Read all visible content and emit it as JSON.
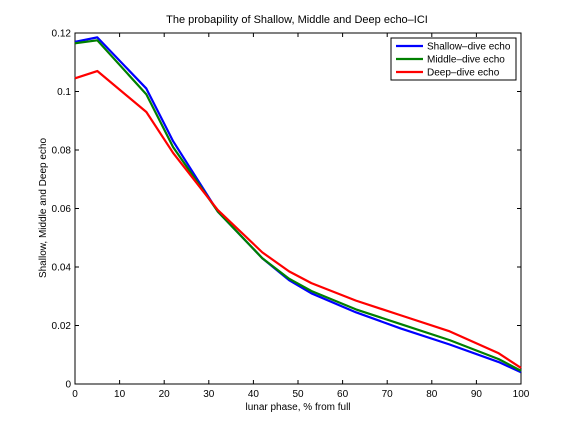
{
  "chart_data": {
    "type": "line",
    "title": "The probapility of Shallow, Middle and Deep echo–ICI",
    "xlabel": "lunar phase, % from full",
    "ylabel": "Shallow, Middle and Deep echo",
    "xlim": [
      0,
      100
    ],
    "ylim": [
      0,
      0.12
    ],
    "xticks": [
      0,
      10,
      20,
      30,
      40,
      50,
      60,
      70,
      80,
      90,
      100
    ],
    "yticks": [
      0,
      0.02,
      0.04,
      0.06,
      0.08,
      0.1,
      0.12
    ],
    "ytick_labels": [
      "0",
      "0.02",
      "0.04",
      "0.06",
      "0.08",
      "0.1",
      "0.12"
    ],
    "grid": false,
    "legend_position": "top-right",
    "series": [
      {
        "name": "Shallow–dive echo",
        "color": "#0000ff",
        "x": [
          0,
          5,
          16,
          22,
          32,
          42,
          48,
          53,
          63,
          73,
          84,
          95,
          100
        ],
        "y": [
          0.117,
          0.1185,
          0.101,
          0.083,
          0.059,
          0.043,
          0.0355,
          0.031,
          0.0245,
          0.019,
          0.0135,
          0.0075,
          0.004
        ]
      },
      {
        "name": "Middle–dive echo",
        "color": "#008000",
        "x": [
          0,
          5,
          16,
          22,
          32,
          42,
          48,
          53,
          63,
          73,
          84,
          95,
          100
        ],
        "y": [
          0.1165,
          0.1175,
          0.099,
          0.081,
          0.059,
          0.043,
          0.036,
          0.0318,
          0.0255,
          0.0205,
          0.015,
          0.0085,
          0.0045
        ]
      },
      {
        "name": "Deep–dive echo",
        "color": "#ff0000",
        "x": [
          0,
          5,
          16,
          22,
          32,
          42,
          48,
          53,
          63,
          73,
          84,
          95,
          100
        ],
        "y": [
          0.1045,
          0.107,
          0.093,
          0.079,
          0.0595,
          0.045,
          0.0385,
          0.0345,
          0.0285,
          0.0235,
          0.018,
          0.0105,
          0.0055
        ]
      }
    ]
  }
}
